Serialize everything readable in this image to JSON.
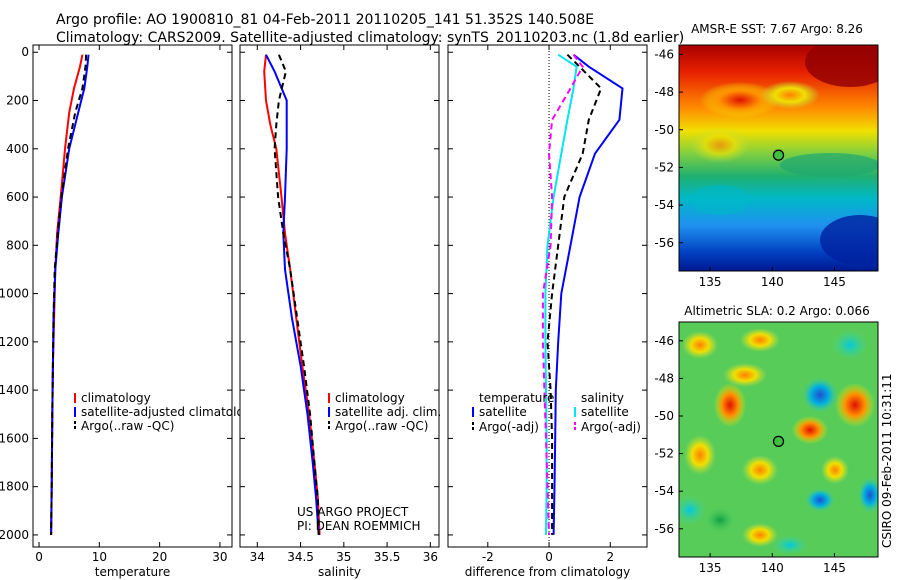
{
  "title_line1": "Argo profile: AO 1900810_81 04-Feb-2011 20110205_141 51.352S 140.508E",
  "title_line2": "Climatology: CARS2009. Satellite-adjusted climatology: synTS_20110203.nc (1.8d earlier)",
  "credit": "CSIRO 09-Feb-2011 10:31:11",
  "colors": {
    "climatology": "#ff0000",
    "satellite": "#0000ff",
    "argo": "#000000",
    "salinity_sat": "#00e5ee",
    "salinity_argo": "#ff00ff"
  },
  "chart_data": [
    {
      "id": "temperature",
      "type": "line",
      "xlabel": "temperature",
      "ylabel": "",
      "xlim": [
        -1,
        32
      ],
      "ylim": [
        2050,
        -30
      ],
      "xticks": [
        0,
        10,
        20,
        30
      ],
      "yticks": [
        0,
        200,
        400,
        600,
        800,
        1000,
        1200,
        1400,
        1600,
        1800,
        2000
      ],
      "legend": [
        "climatology",
        "satellite-adjusted climatology",
        "Argo(..raw -QC)"
      ],
      "series": [
        {
          "name": "climatology",
          "style": "solid",
          "color": "#ff0000",
          "x": [
            7.2,
            6.8,
            5.8,
            5.0,
            4.3,
            3.6,
            3.0,
            2.7,
            2.5,
            2.3,
            2.2,
            2.1,
            2.0
          ],
          "y": [
            10,
            60,
            150,
            250,
            400,
            600,
            750,
            900,
            1100,
            1300,
            1500,
            1800,
            2000
          ]
        },
        {
          "name": "satellite-adjusted climatology",
          "style": "solid",
          "color": "#0000ff",
          "x": [
            8.2,
            8.0,
            7.5,
            6.5,
            5.0,
            3.8,
            3.2,
            2.7,
            2.4,
            2.3,
            2.2,
            2.1,
            2.0
          ],
          "y": [
            10,
            60,
            150,
            250,
            400,
            600,
            750,
            900,
            1100,
            1300,
            1500,
            1800,
            2000
          ]
        },
        {
          "name": "Argo(..raw -QC)",
          "style": "dashed",
          "color": "#000000",
          "x": [
            7.8,
            7.7,
            7.2,
            6.0,
            4.8,
            3.7,
            3.1,
            2.6,
            2.4,
            2.3,
            2.2,
            2.1,
            2.0
          ],
          "y": [
            10,
            60,
            150,
            250,
            400,
            600,
            750,
            900,
            1100,
            1300,
            1500,
            1800,
            2000
          ]
        }
      ]
    },
    {
      "id": "salinity",
      "type": "line",
      "xlabel": "salinity",
      "ylabel": "",
      "xlim": [
        33.8,
        36.1
      ],
      "ylim": [
        2050,
        -30
      ],
      "xticks": [
        34,
        34.5,
        35,
        35.5,
        36
      ],
      "xticklabels": [
        "34",
        "34.5",
        "35",
        "35.5",
        "36"
      ],
      "legend": [
        "climatology",
        "satellite adj. clim.",
        "Argo(..raw -QC)"
      ],
      "series": [
        {
          "name": "climatology",
          "style": "solid",
          "color": "#ff0000",
          "x": [
            34.1,
            34.08,
            34.1,
            34.15,
            34.22,
            34.28,
            34.32,
            34.38,
            34.45,
            34.52,
            34.6,
            34.66,
            34.7,
            34.72
          ],
          "y": [
            10,
            80,
            200,
            300,
            400,
            600,
            750,
            900,
            1100,
            1300,
            1500,
            1700,
            1850,
            2000
          ]
        },
        {
          "name": "satellite adj. clim.",
          "style": "solid",
          "color": "#0000ff",
          "x": [
            34.1,
            34.2,
            34.34,
            34.34,
            34.34,
            34.32,
            34.3,
            34.32,
            34.4,
            34.5,
            34.58,
            34.64,
            34.68,
            34.71
          ],
          "y": [
            10,
            80,
            200,
            300,
            400,
            600,
            750,
            900,
            1100,
            1300,
            1500,
            1700,
            1850,
            2000
          ]
        },
        {
          "name": "Argo(..raw -QC)",
          "style": "dashed",
          "color": "#000000",
          "x": [
            34.25,
            34.33,
            34.25,
            34.22,
            34.2,
            34.24,
            34.3,
            34.38,
            34.46,
            34.54,
            34.61,
            34.66,
            34.7,
            34.71
          ],
          "y": [
            10,
            80,
            200,
            300,
            400,
            600,
            750,
            900,
            1100,
            1300,
            1500,
            1700,
            1850,
            2000
          ]
        }
      ],
      "annotations": [
        "US ARGO PROJECT",
        "PI: DEAN ROEMMICH"
      ]
    },
    {
      "id": "difference",
      "type": "line",
      "xlabel": "difference from climatology",
      "ylabel": "",
      "xlim": [
        -3.3,
        3.2
      ],
      "ylim": [
        2050,
        -30
      ],
      "xticks": [
        -2,
        0,
        2
      ],
      "legend_groups": [
        {
          "title": "temperature",
          "entries": [
            "satellite",
            "Argo(-adj)"
          ]
        },
        {
          "title": "salinity",
          "entries": [
            "satellite",
            "Argo(-adj)"
          ]
        }
      ],
      "series": [
        {
          "name": "temperature satellite",
          "style": "solid",
          "color": "#0000ff",
          "x": [
            0.8,
            1.3,
            2.4,
            2.3,
            1.5,
            1.0,
            0.7,
            0.4,
            0.3,
            0.22,
            0.2,
            0.18,
            0.15
          ],
          "y": [
            10,
            60,
            150,
            280,
            420,
            600,
            800,
            1000,
            1200,
            1400,
            1600,
            1800,
            2000
          ]
        },
        {
          "name": "temperature Argo(-adj)",
          "style": "dashed",
          "color": "#000000",
          "x": [
            0.6,
            1.0,
            1.7,
            1.3,
            1.1,
            0.5,
            0.3,
            0.1,
            -0.05,
            0.05,
            0.1,
            0.1,
            0.1
          ],
          "y": [
            10,
            60,
            150,
            280,
            420,
            600,
            800,
            1000,
            1200,
            1400,
            1600,
            1800,
            2000
          ]
        },
        {
          "name": "salinity satellite",
          "style": "solid",
          "color": "#00e5ee",
          "x": [
            0.3,
            0.9,
            0.8,
            0.6,
            0.4,
            0.15,
            -0.05,
            -0.12,
            -0.12,
            -0.1,
            -0.08,
            -0.08,
            -0.1
          ],
          "y": [
            10,
            60,
            150,
            280,
            420,
            600,
            800,
            1000,
            1200,
            1400,
            1600,
            1800,
            2000
          ]
        },
        {
          "name": "salinity Argo(-adj)",
          "style": "dashed",
          "color": "#ff00ff",
          "x": [
            0.8,
            1.1,
            0.7,
            0.1,
            0.0,
            0.1,
            0.05,
            -0.2,
            -0.2,
            -0.15,
            -0.1,
            -0.05,
            0.0
          ],
          "y": [
            10,
            60,
            150,
            280,
            420,
            600,
            800,
            1000,
            1200,
            1400,
            1600,
            1800,
            2000
          ]
        }
      ]
    },
    {
      "id": "sst_map",
      "type": "heatmap",
      "title": "AMSR-E SST: 7.67 Argo: 8.26",
      "xlim": [
        132.5,
        148.5
      ],
      "ylim": [
        -57.5,
        -45.5
      ],
      "xticks": [
        135,
        140,
        145
      ],
      "yticks": [
        -46,
        -48,
        -50,
        -52,
        -54,
        -56
      ],
      "float_position": {
        "lon": 140.5,
        "lat": -51.35
      }
    },
    {
      "id": "sla_map",
      "type": "heatmap",
      "title": "Altimetric SLA: 0.2 Argo: 0.066",
      "xlim": [
        132.5,
        148.5
      ],
      "ylim": [
        -57.5,
        -45
      ],
      "xticks": [
        135,
        140,
        145
      ],
      "yticks": [
        -46,
        -48,
        -50,
        -52,
        -54,
        -56
      ],
      "float_position": {
        "lon": 140.5,
        "lat": -51.35
      }
    }
  ]
}
